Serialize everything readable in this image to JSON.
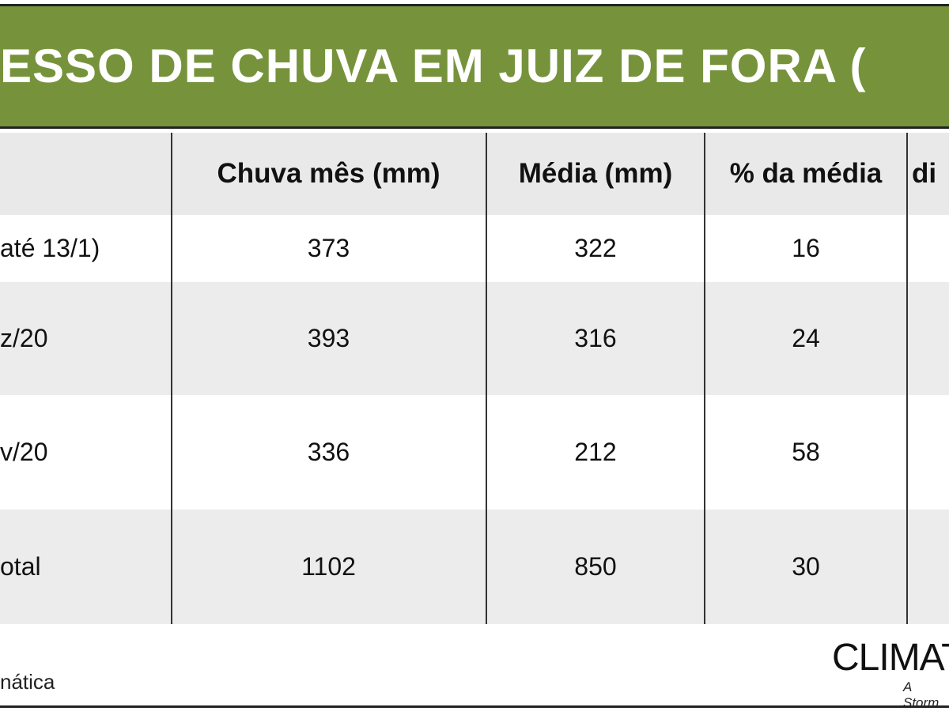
{
  "header": {
    "title": "ESSO DE CHUVA EM JUIZ DE FORA ("
  },
  "table": {
    "columns": [
      "Chuva mês (mm)",
      "Média (mm)",
      "% da média",
      "di"
    ],
    "rows": [
      [
        "até 13/1)",
        373,
        322,
        16
      ],
      [
        "z/20",
        393,
        316,
        24
      ],
      [
        "v/20",
        336,
        212,
        58
      ],
      [
        "otal",
        1102,
        850,
        30
      ]
    ]
  },
  "footer": {
    "left": "nática",
    "brand": "CLIMAT",
    "tagline": "A Storm"
  }
}
